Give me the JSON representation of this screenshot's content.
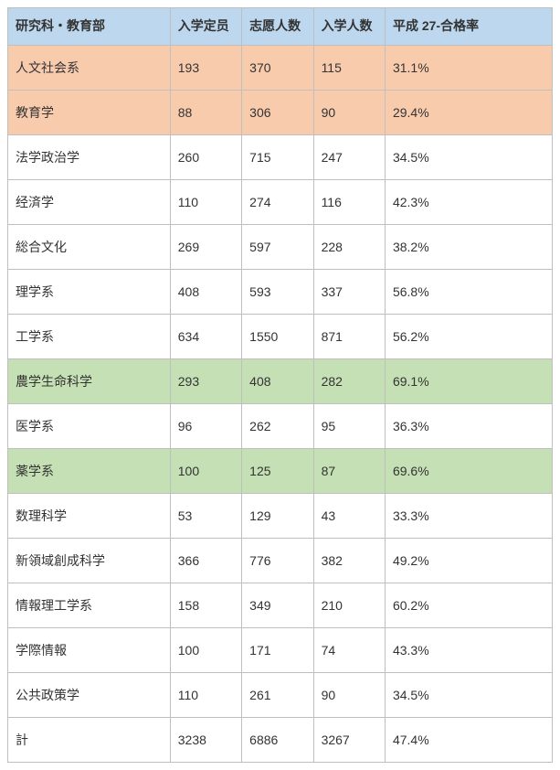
{
  "table": {
    "header_bg": "#bdd7ee",
    "row_default_bg": "#ffffff",
    "highlight_peach_bg": "#f8cbad",
    "highlight_green_bg": "#c5e0b4",
    "border_color": "#bfbfbf",
    "columns": [
      {
        "key": "dept",
        "label": "研究科・教育部"
      },
      {
        "key": "capacity",
        "label": "入学定员"
      },
      {
        "key": "applicants",
        "label": "志愿人数"
      },
      {
        "key": "enrolled",
        "label": "入学人数"
      },
      {
        "key": "rate",
        "label": "平成 27-合格率"
      }
    ],
    "rows": [
      {
        "dept": "人文社会系",
        "capacity": "193",
        "applicants": "370",
        "enrolled": "115",
        "rate": "31.1%",
        "bg": "#f8cbad"
      },
      {
        "dept": "教育学",
        "capacity": "88",
        "applicants": "306",
        "enrolled": "90",
        "rate": "29.4%",
        "bg": "#f8cbad"
      },
      {
        "dept": "法学政治学",
        "capacity": "260",
        "applicants": "715",
        "enrolled": "247",
        "rate": "34.5%",
        "bg": "#ffffff"
      },
      {
        "dept": "经済学",
        "capacity": "110",
        "applicants": "274",
        "enrolled": "116",
        "rate": "42.3%",
        "bg": "#ffffff"
      },
      {
        "dept": "総合文化",
        "capacity": "269",
        "applicants": "597",
        "enrolled": "228",
        "rate": "38.2%",
        "bg": "#ffffff"
      },
      {
        "dept": "理学系",
        "capacity": "408",
        "applicants": "593",
        "enrolled": "337",
        "rate": "56.8%",
        "bg": "#ffffff"
      },
      {
        "dept": "工学系",
        "capacity": "634",
        "applicants": "1550",
        "enrolled": "871",
        "rate": "56.2%",
        "bg": "#ffffff"
      },
      {
        "dept": "農学生命科学",
        "capacity": "293",
        "applicants": "408",
        "enrolled": "282",
        "rate": "69.1%",
        "bg": "#c5e0b4"
      },
      {
        "dept": "医学系",
        "capacity": "96",
        "applicants": "262",
        "enrolled": "95",
        "rate": "36.3%",
        "bg": "#ffffff"
      },
      {
        "dept": "薬学系",
        "capacity": "100",
        "applicants": "125",
        "enrolled": "87",
        "rate": "69.6%",
        "bg": "#c5e0b4"
      },
      {
        "dept": "数理科学",
        "capacity": "53",
        "applicants": "129",
        "enrolled": "43",
        "rate": "33.3%",
        "bg": "#ffffff"
      },
      {
        "dept": "新領域創成科学",
        "capacity": "366",
        "applicants": "776",
        "enrolled": "382",
        "rate": "49.2%",
        "bg": "#ffffff"
      },
      {
        "dept": "情報理工学系",
        "capacity": "158",
        "applicants": "349",
        "enrolled": "210",
        "rate": "60.2%",
        "bg": "#ffffff"
      },
      {
        "dept": "学際情報",
        "capacity": "100",
        "applicants": "171",
        "enrolled": "74",
        "rate": "43.3%",
        "bg": "#ffffff"
      },
      {
        "dept": "公共政策学",
        "capacity": "110",
        "applicants": "261",
        "enrolled": "90",
        "rate": "34.5%",
        "bg": "#ffffff"
      },
      {
        "dept": "計",
        "capacity": "3238",
        "applicants": "6886",
        "enrolled": "3267",
        "rate": "47.4%",
        "bg": "#ffffff"
      }
    ]
  }
}
